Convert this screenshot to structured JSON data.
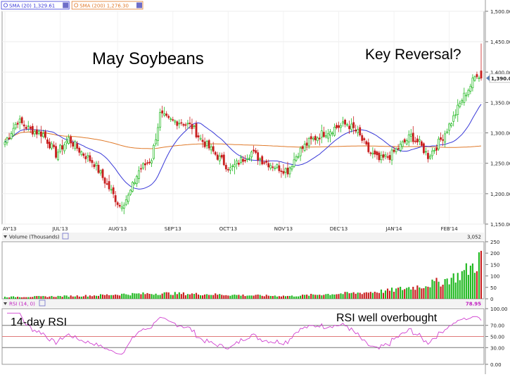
{
  "chart_data": {
    "type": "candlestick",
    "title": "May Soybeans",
    "annotations": {
      "reversal": "Key Reversal?",
      "rsi_label": "14-day RSI",
      "rsi_note": "RSI well overbought"
    },
    "legend": [
      {
        "label": "SMA (20)",
        "value": "1,329.61",
        "color": "#3a3ad8"
      },
      {
        "label": "SMA (200)",
        "value": "1,276.30",
        "color": "#e07a2a"
      }
    ],
    "x_ticks": [
      "AY'13",
      "JUL'13",
      "AUG'13",
      "SEP'13",
      "OCT'13",
      "NOV'13",
      "DEC'13",
      "JAN'14",
      "FEB'14"
    ],
    "y_ticks": [
      "1,500.00",
      "1,450.00",
      "1,400.00",
      "1,350.00",
      "1,300.00",
      "1,250.00",
      "1,200.00",
      "1,150.00"
    ],
    "ylim": [
      1150,
      1500
    ],
    "last_price": "1,390.00",
    "up_color": "#1fb81f",
    "down_color": "#c81e1e",
    "close_anchors": [
      [
        0,
        1285
      ],
      [
        6,
        1320
      ],
      [
        12,
        1305
      ],
      [
        18,
        1298
      ],
      [
        24,
        1265
      ],
      [
        30,
        1290
      ],
      [
        36,
        1268
      ],
      [
        42,
        1250
      ],
      [
        48,
        1215
      ],
      [
        54,
        1180
      ],
      [
        58,
        1195
      ],
      [
        63,
        1238
      ],
      [
        69,
        1258
      ],
      [
        73,
        1330
      ],
      [
        77,
        1320
      ],
      [
        83,
        1318
      ],
      [
        88,
        1310
      ],
      [
        92,
        1290
      ],
      [
        97,
        1272
      ],
      [
        101,
        1258
      ],
      [
        106,
        1240
      ],
      [
        111,
        1255
      ],
      [
        116,
        1268
      ],
      [
        121,
        1255
      ],
      [
        127,
        1245
      ],
      [
        133,
        1238
      ],
      [
        138,
        1268
      ],
      [
        143,
        1285
      ],
      [
        149,
        1298
      ],
      [
        155,
        1308
      ],
      [
        161,
        1315
      ],
      [
        166,
        1300
      ],
      [
        171,
        1270
      ],
      [
        176,
        1255
      ],
      [
        181,
        1262
      ],
      [
        186,
        1278
      ],
      [
        191,
        1295
      ],
      [
        195,
        1282
      ],
      [
        199,
        1262
      ],
      [
        203,
        1278
      ],
      [
        207,
        1300
      ],
      [
        211,
        1325
      ],
      [
        215,
        1355
      ],
      [
        219,
        1378
      ],
      [
        222,
        1398
      ],
      [
        224,
        1392
      ]
    ],
    "volume": {
      "label": "Volume (Thousands)",
      "ticks": [
        "250",
        "200",
        "150",
        "100",
        "50",
        "0"
      ],
      "ylim": [
        0,
        250
      ],
      "max_label": "3,052",
      "anchors": [
        [
          0,
          8
        ],
        [
          20,
          10
        ],
        [
          40,
          14
        ],
        [
          55,
          20
        ],
        [
          75,
          24
        ],
        [
          95,
          20
        ],
        [
          115,
          15
        ],
        [
          135,
          12
        ],
        [
          150,
          20
        ],
        [
          165,
          25
        ],
        [
          180,
          35
        ],
        [
          195,
          55
        ],
        [
          205,
          75
        ],
        [
          213,
          100
        ],
        [
          218,
          130
        ],
        [
          222,
          155
        ],
        [
          224,
          210
        ]
      ]
    },
    "rsi": {
      "label": "RSI (14, 0)",
      "value": "78.95",
      "ticks": [
        "100.00",
        "70.00",
        "50.00",
        "30.00",
        "0.00"
      ],
      "ylim": [
        0,
        100
      ],
      "levels": [
        70,
        50,
        30
      ]
    }
  }
}
